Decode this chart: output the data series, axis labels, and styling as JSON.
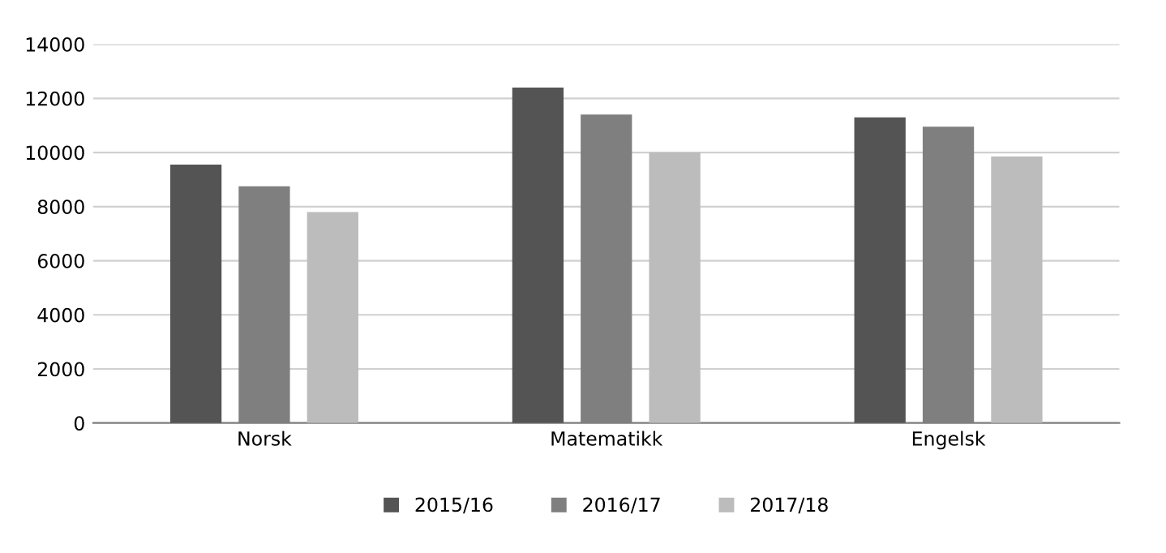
{
  "chart_data": {
    "type": "bar",
    "categories": [
      "Norsk",
      "Matematikk",
      "Engelsk"
    ],
    "series": [
      {
        "name": "2015/16",
        "color": "#545454",
        "values": [
          9550,
          12400,
          11300
        ]
      },
      {
        "name": "2016/17",
        "color": "#7f7f7f",
        "values": [
          8750,
          11400,
          10950
        ]
      },
      {
        "name": "2017/18",
        "color": "#bcbcbc",
        "values": [
          7800,
          10000,
          9850
        ]
      }
    ],
    "ylim": [
      0,
      14000
    ],
    "yticks": [
      0,
      2000,
      4000,
      6000,
      8000,
      10000,
      12000,
      14000
    ],
    "grid": "y",
    "legend": "bottom"
  }
}
